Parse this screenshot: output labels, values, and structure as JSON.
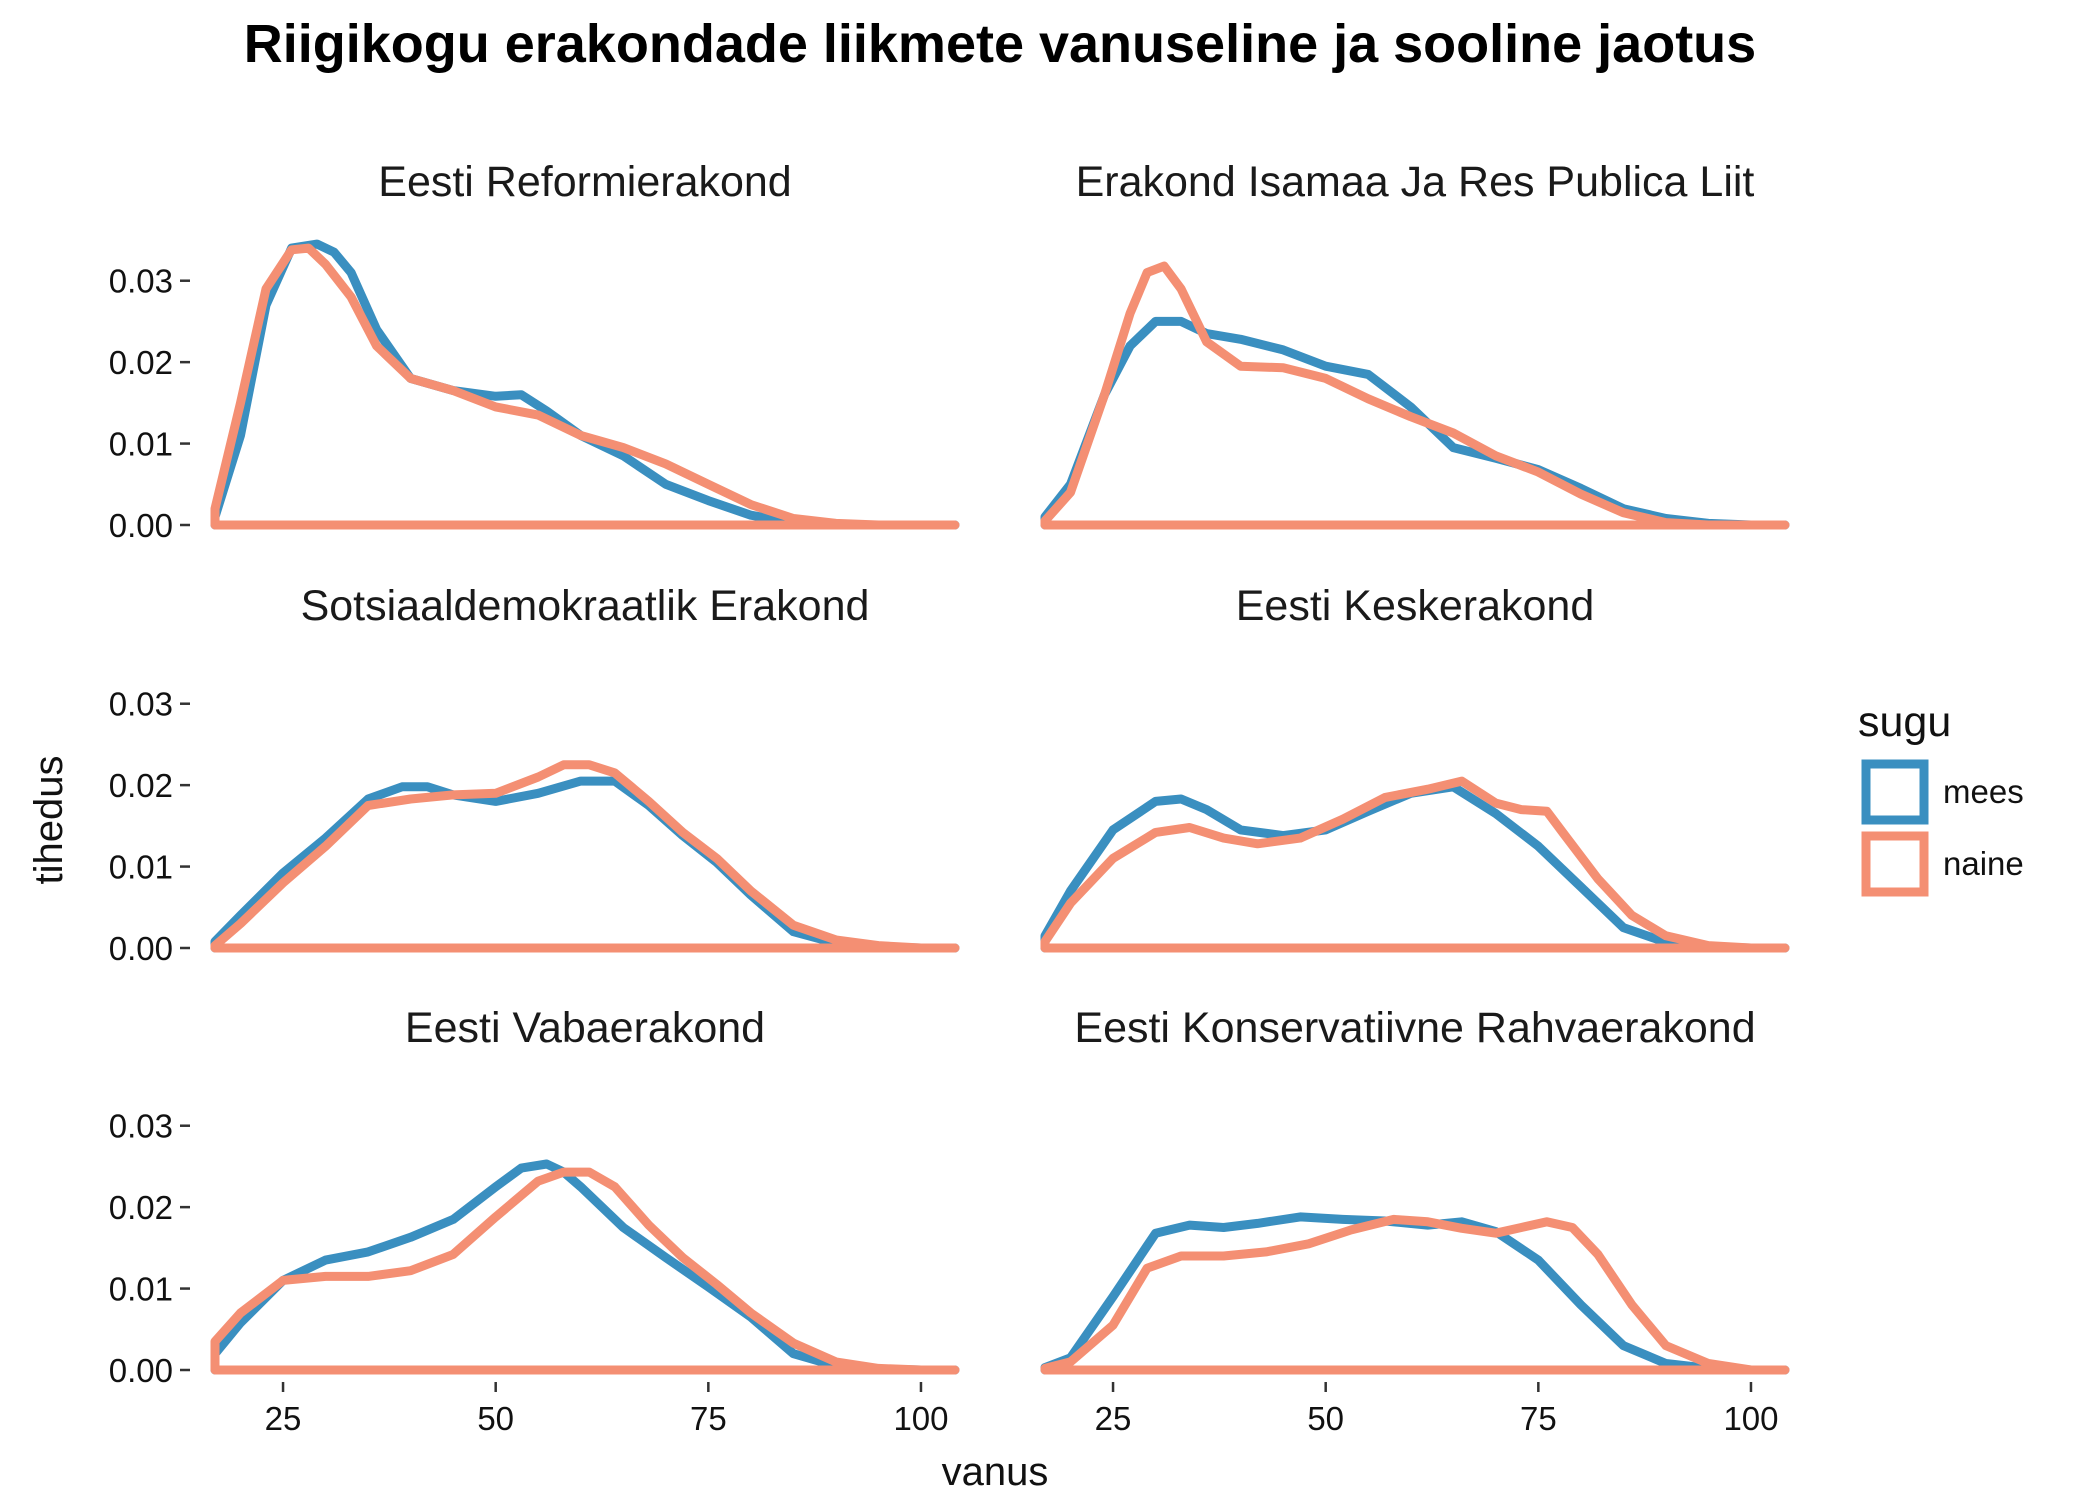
{
  "chart_data": {
    "type": "line",
    "title": "Riigikogu erakondade liikmete vanuseline ja sooline jaotus",
    "xlabel": "vanus",
    "ylabel": "tihedus",
    "xlim": [
      17,
      104
    ],
    "ylim": [
      0,
      0.035
    ],
    "x_ticks": [
      25,
      50,
      75,
      100
    ],
    "x_tick_labels": [
      "25",
      "50",
      "75",
      "100"
    ],
    "y_ticks": [
      0,
      0.01,
      0.02,
      0.03
    ],
    "y_tick_labels": [
      "0.00",
      "0.01",
      "0.02",
      "0.03"
    ],
    "grid": false,
    "legend": {
      "title": "sugu",
      "position": "right",
      "entries": [
        {
          "name": "mees",
          "color": "#3a8fc0"
        },
        {
          "name": "naine",
          "color": "#f48f73"
        }
      ]
    },
    "panels": [
      {
        "title": "Eesti Reformierakond",
        "series": [
          {
            "name": "mees",
            "color": "#3a8fc0",
            "x": [
              17,
              20,
              23,
              26,
              29,
              31,
              33,
              36,
              40,
              45,
              50,
              53,
              56,
              60,
              65,
              70,
              75,
              80,
              85,
              90,
              95,
              100,
              104
            ],
            "y": [
              0.001,
              0.011,
              0.027,
              0.034,
              0.0345,
              0.0335,
              0.031,
              0.024,
              0.018,
              0.0165,
              0.0158,
              0.016,
              0.014,
              0.011,
              0.0085,
              0.005,
              0.003,
              0.0012,
              0.0003,
              0,
              0,
              0,
              0
            ]
          },
          {
            "name": "naine",
            "color": "#f48f73",
            "x": [
              17,
              20,
              23,
              26,
              28,
              30,
              33,
              36,
              40,
              45,
              50,
              55,
              60,
              65,
              70,
              75,
              80,
              85,
              90,
              95,
              100,
              104
            ],
            "y": [
              0.002,
              0.015,
              0.029,
              0.0338,
              0.034,
              0.032,
              0.028,
              0.022,
              0.018,
              0.0165,
              0.0145,
              0.0135,
              0.011,
              0.0095,
              0.0075,
              0.005,
              0.0025,
              0.0008,
              0.0002,
              0,
              0,
              0
            ]
          }
        ]
      },
      {
        "title": "Erakond Isamaa Ja Res Publica Liit",
        "series": [
          {
            "name": "mees",
            "color": "#3a8fc0",
            "x": [
              17,
              20,
              24,
              27,
              30,
              33,
              36,
              40,
              45,
              50,
              55,
              60,
              65,
              70,
              75,
              80,
              85,
              90,
              95,
              100,
              104
            ],
            "y": [
              0.001,
              0.005,
              0.016,
              0.022,
              0.025,
              0.025,
              0.0235,
              0.0228,
              0.0215,
              0.0195,
              0.0185,
              0.0145,
              0.0095,
              0.0082,
              0.0068,
              0.0045,
              0.002,
              0.0008,
              0.0002,
              0,
              0
            ]
          },
          {
            "name": "naine",
            "color": "#f48f73",
            "x": [
              17,
              20,
              24,
              27,
              29,
              31,
              33,
              36,
              40,
              45,
              50,
              55,
              60,
              65,
              70,
              75,
              80,
              85,
              90,
              95,
              100,
              104
            ],
            "y": [
              0.0005,
              0.004,
              0.016,
              0.026,
              0.031,
              0.0318,
              0.029,
              0.0225,
              0.0195,
              0.0193,
              0.018,
              0.0155,
              0.0133,
              0.0113,
              0.0085,
              0.0065,
              0.0038,
              0.0015,
              0.0003,
              0,
              0,
              0
            ]
          }
        ]
      },
      {
        "title": "Sotsiaaldemokraatlik Erakond",
        "series": [
          {
            "name": "mees",
            "color": "#3a8fc0",
            "x": [
              17,
              20,
              25,
              30,
              35,
              39,
              42,
              45,
              50,
              55,
              60,
              64,
              68,
              72,
              76,
              80,
              85,
              90,
              95,
              100,
              104
            ],
            "y": [
              0.0008,
              0.004,
              0.0092,
              0.0135,
              0.0183,
              0.0198,
              0.0198,
              0.0188,
              0.018,
              0.019,
              0.0205,
              0.0205,
              0.0175,
              0.0138,
              0.0105,
              0.0065,
              0.002,
              0.0006,
              0.0001,
              0,
              0
            ]
          },
          {
            "name": "naine",
            "color": "#f48f73",
            "x": [
              17,
              20,
              25,
              30,
              35,
              40,
              45,
              50,
              55,
              58,
              61,
              64,
              68,
              72,
              76,
              80,
              85,
              90,
              95,
              100,
              104
            ],
            "y": [
              0.0003,
              0.003,
              0.008,
              0.0125,
              0.0175,
              0.0183,
              0.0188,
              0.019,
              0.021,
              0.0225,
              0.0225,
              0.0215,
              0.018,
              0.0142,
              0.011,
              0.007,
              0.0028,
              0.001,
              0.0003,
              0,
              0
            ]
          }
        ]
      },
      {
        "title": "Eesti Keskerakond",
        "series": [
          {
            "name": "mees",
            "color": "#3a8fc0",
            "x": [
              17,
              20,
              25,
              30,
              33,
              36,
              40,
              45,
              50,
              55,
              60,
              65,
              70,
              75,
              80,
              85,
              90,
              95,
              100,
              104
            ],
            "y": [
              0.0015,
              0.007,
              0.0145,
              0.018,
              0.0183,
              0.017,
              0.0145,
              0.0138,
              0.0145,
              0.0168,
              0.019,
              0.0198,
              0.0165,
              0.0125,
              0.0075,
              0.0025,
              0.0007,
              0.0001,
              0,
              0
            ]
          },
          {
            "name": "naine",
            "color": "#f48f73",
            "x": [
              17,
              20,
              25,
              30,
              34,
              38,
              42,
              47,
              52,
              57,
              62,
              66,
              70,
              73,
              76,
              78,
              82,
              86,
              90,
              95,
              100,
              104
            ],
            "y": [
              0.0008,
              0.0055,
              0.011,
              0.0142,
              0.0148,
              0.0135,
              0.0128,
              0.0135,
              0.0158,
              0.0185,
              0.0195,
              0.0205,
              0.0178,
              0.017,
              0.0168,
              0.014,
              0.0085,
              0.004,
              0.0015,
              0.0003,
              0,
              0
            ]
          }
        ]
      },
      {
        "title": "Eesti Vabaerakond",
        "series": [
          {
            "name": "mees",
            "color": "#3a8fc0",
            "x": [
              17,
              20,
              25,
              30,
              35,
              40,
              45,
              50,
              53,
              56,
              58,
              60,
              65,
              70,
              75,
              80,
              85,
              90,
              95,
              100,
              104
            ],
            "y": [
              0.002,
              0.0058,
              0.011,
              0.0135,
              0.0145,
              0.0163,
              0.0185,
              0.0225,
              0.0248,
              0.0253,
              0.0243,
              0.0225,
              0.0175,
              0.0138,
              0.0102,
              0.0065,
              0.002,
              0.0005,
              0.0001,
              0,
              0
            ]
          },
          {
            "name": "naine",
            "color": "#f48f73",
            "x": [
              17,
              20,
              25,
              30,
              35,
              40,
              45,
              50,
              55,
              58,
              61,
              64,
              68,
              72,
              76,
              80,
              85,
              90,
              95,
              100,
              104
            ],
            "y": [
              0.0035,
              0.007,
              0.011,
              0.0115,
              0.0115,
              0.0122,
              0.0142,
              0.0188,
              0.0232,
              0.0243,
              0.0243,
              0.0225,
              0.0178,
              0.0138,
              0.0105,
              0.007,
              0.0033,
              0.001,
              0.0002,
              0,
              0
            ]
          }
        ]
      },
      {
        "title": "Eesti Konservatiivne Rahvaerakond",
        "series": [
          {
            "name": "mees",
            "color": "#3a8fc0",
            "x": [
              17,
              20,
              25,
              30,
              34,
              38,
              42,
              47,
              52,
              57,
              62,
              66,
              70,
              75,
              80,
              85,
              90,
              95,
              100,
              104
            ],
            "y": [
              0.0003,
              0.0015,
              0.009,
              0.0168,
              0.0178,
              0.0175,
              0.018,
              0.0188,
              0.0185,
              0.0183,
              0.0178,
              0.0182,
              0.017,
              0.0135,
              0.008,
              0.003,
              0.0008,
              0.0002,
              0,
              0
            ]
          },
          {
            "name": "naine",
            "color": "#f48f73",
            "x": [
              17,
              20,
              25,
              29,
              33,
              38,
              43,
              48,
              53,
              58,
              62,
              66,
              70,
              73,
              76,
              79,
              82,
              86,
              90,
              95,
              100,
              104
            ],
            "y": [
              0.0002,
              0.001,
              0.0055,
              0.0125,
              0.014,
              0.014,
              0.0145,
              0.0155,
              0.0172,
              0.0185,
              0.0182,
              0.0174,
              0.0168,
              0.0175,
              0.0182,
              0.0175,
              0.0142,
              0.008,
              0.003,
              0.0008,
              0,
              0
            ]
          }
        ]
      }
    ]
  }
}
